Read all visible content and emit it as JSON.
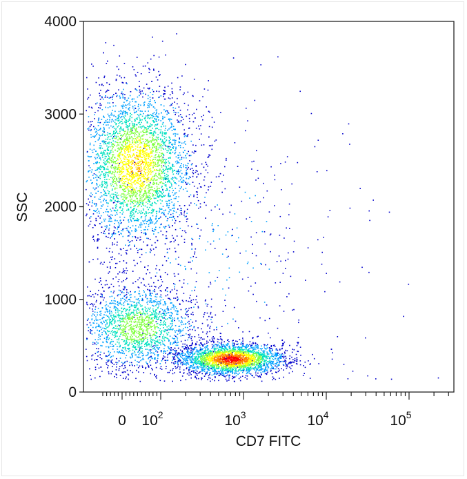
{
  "chart_data": {
    "type": "scatter",
    "subtype": "flow-cytometry-density-dot-plot",
    "title": "",
    "xlabel": "CD7 FITC",
    "ylabel": "SSC",
    "x_scale": "biexponential (linear near 0, log above ~10^2)",
    "y_scale": "linear",
    "ylim": [
      0,
      4000
    ],
    "xlim": [
      -60,
      250000
    ],
    "grid": false,
    "legend": "none",
    "density_colormap": [
      "#0000cc",
      "#00a0ff",
      "#00e0c0",
      "#80ff40",
      "#ffff00",
      "#ff8000",
      "#ff0000"
    ],
    "y_ticks": [
      {
        "value": 0,
        "label": "0"
      },
      {
        "value": 1000,
        "label": "1000"
      },
      {
        "value": 2000,
        "label": "2000"
      },
      {
        "value": 3000,
        "label": "3000"
      },
      {
        "value": 4000,
        "label": "4000"
      }
    ],
    "x_ticks": [
      {
        "value": 0,
        "base": "0",
        "exp": ""
      },
      {
        "value": 100,
        "base": "10",
        "exp": "2"
      },
      {
        "value": 1000,
        "base": "10",
        "exp": "3"
      },
      {
        "value": 10000,
        "base": "10",
        "exp": "4"
      },
      {
        "value": 100000,
        "base": "10",
        "exp": "5"
      }
    ],
    "populations": [
      {
        "center_x": 35,
        "center_y": 2450,
        "spread_x_decades": 0.35,
        "spread_y": 430,
        "weight": 0.44,
        "peak_density": 0.75
      },
      {
        "center_x": 40,
        "center_y": 700,
        "spread_x_decades": 0.35,
        "spread_y": 230,
        "weight": 0.2,
        "peak_density": 0.55
      },
      {
        "center_x": 700,
        "center_y": 360,
        "spread_x_decades": 0.32,
        "spread_y": 85,
        "weight": 0.3,
        "peak_density": 1.0
      },
      {
        "center_x": 300,
        "center_y": 1500,
        "spread_x_decades": 0.9,
        "spread_y": 900,
        "weight": 0.06,
        "peak_density": 0.1
      }
    ]
  }
}
